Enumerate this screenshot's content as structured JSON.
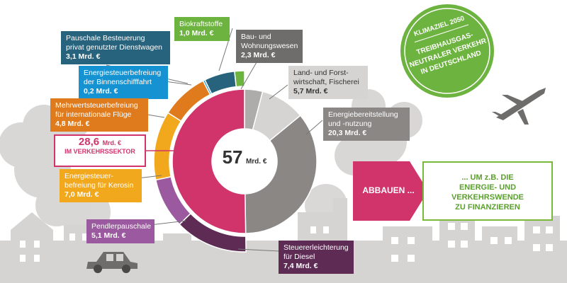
{
  "colors": {
    "pink": "#d1336b",
    "dark_gray": "#8a8785",
    "light_gray": "#d6d4d2",
    "mid_gray": "#aeacaa",
    "purple": "#9b5a9f",
    "dark_purple": "#5d2b54",
    "yellow": "#f2a81d",
    "orange": "#e07b1d",
    "teal": "#27637d",
    "green": "#6db33f",
    "cyan": "#1592d2",
    "background_gray": "#b9b8b6"
  },
  "chart_data": {
    "type": "pie",
    "center_label": {
      "value": "57",
      "unit": "Mrd. €"
    },
    "inner_ring": [
      {
        "name": "Verkehrssektor",
        "value": 28.6
      },
      {
        "name": "Land- und Forstwirtschaft, Fischerei",
        "value": 5.7
      },
      {
        "name": "Energiebereitstellung und -nutzung",
        "value": 20.3
      },
      {
        "name": "Bau- und Wohnungswesen",
        "value": 2.3
      }
    ],
    "outer_ring": [
      {
        "name": "Steuererleichterung für Diesel",
        "value": 7.4
      },
      {
        "name": "Pendlerpauschale",
        "value": 5.1
      },
      {
        "name": "Energiesteuerbefreiung für Kerosin",
        "value": 7.0
      },
      {
        "name": "Mehrwertsteuerbefreiung für internationale Flüge",
        "value": 4.8
      },
      {
        "name": "Energiesteuerbefreiung der Binnenschifffahrt",
        "value": 0.2
      },
      {
        "name": "Pauschale Besteuerung privat genutzter Dienstwagen",
        "value": 3.1
      },
      {
        "name": "Biokraftstoffe",
        "value": 1.0
      }
    ]
  },
  "labels": {
    "biokraft": {
      "name": "Biokraftstoffe",
      "value": "1,0 Mrd. €"
    },
    "dienstwagen": {
      "name": "Pauschale Besteuerung\nprivat genutzter Dienstwagen",
      "value": "3,1 Mrd. €"
    },
    "binnenschiff": {
      "name": "Energiesteuerbefreiung\nder Binnenschifffahrt",
      "value": "0,2 Mrd. €"
    },
    "fluege": {
      "name": "Mehrwertsteuerbefreiung\nfür internationale Flüge",
      "value": "4,8 Mrd. €"
    },
    "kerosin": {
      "name": "Energiesteuer-\nbefreiung für Kerosin",
      "value": "7,0 Mrd. €"
    },
    "pendler": {
      "name": "Pendlerpauschale",
      "value": "5,1 Mrd. €"
    },
    "diesel": {
      "name": "Steuererleichterung\nfür Diesel",
      "value": "7,4 Mrd. €"
    },
    "bau": {
      "name": "Bau- und\nWohnungswesen",
      "value": "2,3 Mrd. €"
    },
    "land": {
      "name": "Land- und Forst-\nwirtschaft, Fischerei",
      "value": "5,7 Mrd. €"
    },
    "energie": {
      "name": "Energiebereitstellung\nund -nutzung",
      "value": "20,3 Mrd. €"
    }
  },
  "verkehrssektor": {
    "value": "28,6",
    "unit": "Mrd. €",
    "label": "IM VERKEHRSSEKTOR"
  },
  "action": {
    "abbauen": "ABBAUEN ...",
    "goal": "... UM z.B. DIE\nENERGIE- UND\nVERKEHRSWENDE\nZU FINANZIEREN"
  },
  "badge": {
    "title": "KLIMAZIEL 2050",
    "line1": "TREIBHAUSGAS-",
    "line2": "NEUTRALER VERKEHR",
    "line3": "IN DEUTSCHLAND"
  }
}
